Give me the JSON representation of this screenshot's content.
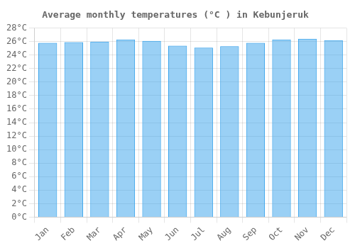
{
  "chart_data": {
    "type": "bar",
    "title": "Average monthly temperatures (°C ) in Kebunjeruk",
    "categories": [
      "Jan",
      "Feb",
      "Mar",
      "Apr",
      "May",
      "Jun",
      "Jul",
      "Aug",
      "Sep",
      "Oct",
      "Nov",
      "Dec"
    ],
    "values": [
      25.8,
      25.9,
      26.0,
      26.3,
      26.1,
      25.4,
      25.1,
      25.3,
      25.8,
      26.3,
      26.4,
      26.2
    ],
    "ylim": [
      0,
      28
    ],
    "yticks": [
      {
        "value": 0,
        "label": "0°C"
      },
      {
        "value": 2,
        "label": "2°C"
      },
      {
        "value": 4,
        "label": "4°C"
      },
      {
        "value": 6,
        "label": "6°C"
      },
      {
        "value": 8,
        "label": "8°C"
      },
      {
        "value": 10,
        "label": "10°C"
      },
      {
        "value": 12,
        "label": "12°C"
      },
      {
        "value": 14,
        "label": "14°C"
      },
      {
        "value": 16,
        "label": "16°C"
      },
      {
        "value": 18,
        "label": "18°C"
      },
      {
        "value": 20,
        "label": "20°C"
      },
      {
        "value": 22,
        "label": "22°C"
      },
      {
        "value": 24,
        "label": "24°C"
      },
      {
        "value": 26,
        "label": "26°C"
      },
      {
        "value": 28,
        "label": "28°C"
      }
    ],
    "grid": true
  }
}
